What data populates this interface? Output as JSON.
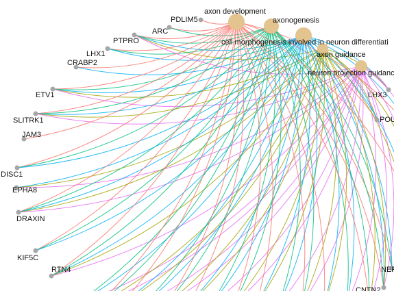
{
  "term_color": "#e3c38e",
  "gene_color": "#a6a6a6",
  "terms": [
    {
      "label": "axon development",
      "color": "#f8766d"
    },
    {
      "label": "axonogenesis",
      "color": "#00bf7d"
    },
    {
      "label": "cell morphogenesis involved in neuron differentiati",
      "color": "#00b0f6"
    },
    {
      "label": "axon guidance",
      "color": "#a3a500"
    },
    {
      "label": "neuron projection guidanc",
      "color": "#e76bf3"
    }
  ],
  "genes": [
    {
      "label": "PDLIM5"
    },
    {
      "label": "ARC"
    },
    {
      "label": "PTPRO"
    },
    {
      "label": "LHX1"
    },
    {
      "label": "CRABP2"
    },
    {
      "label": "ETV1"
    },
    {
      "label": "SLITRK1"
    },
    {
      "label": "JAM3"
    },
    {
      "label": "DISC1"
    },
    {
      "label": "EPHA8"
    },
    {
      "label": "DRAXIN"
    },
    {
      "label": "KIF5C"
    },
    {
      "label": "RTN4"
    },
    {
      "label": "LHX3"
    },
    {
      "label": "POU"
    },
    {
      "label": "NEF"
    },
    {
      "label": "CNTN2"
    }
  ]
}
